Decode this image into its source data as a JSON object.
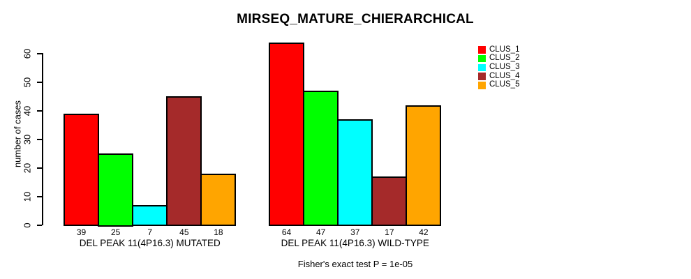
{
  "title": "MIRSEQ_MATURE_CHIERARCHICAL",
  "colors": {
    "background": "#FFFFFF",
    "text": "#000000",
    "bar_border": "#000000"
  },
  "chart_data": {
    "type": "bar",
    "title": "MIRSEQ_MATURE_CHIERARCHICAL",
    "ylabel": "number of cases",
    "xlabel": "",
    "ylim": [
      0,
      64
    ],
    "yticks": [
      0,
      10,
      20,
      30,
      40,
      50,
      60
    ],
    "grid": false,
    "legend_position": "top-right",
    "legend": [
      {
        "label": "CLUS_1",
        "color": "#FF0000"
      },
      {
        "label": "CLUS_2",
        "color": "#00FF00"
      },
      {
        "label": "CLUS_3",
        "color": "#00FFFF"
      },
      {
        "label": "CLUS_4",
        "color": "#A52A2A"
      },
      {
        "label": "CLUS_5",
        "color": "#FFA500"
      }
    ],
    "categories": [
      "DEL PEAK 11(4P16.3) MUTATED",
      "DEL PEAK 11(4P16.3) WILD-TYPE"
    ],
    "groups": [
      {
        "label": "DEL PEAK 11(4P16.3) MUTATED",
        "values": [
          39,
          25,
          7,
          45,
          18
        ]
      },
      {
        "label": "DEL PEAK 11(4P16.3) WILD-TYPE",
        "values": [
          64,
          47,
          37,
          17,
          42
        ]
      }
    ],
    "annotation": "Fisher's exact test P = 1e-05"
  }
}
